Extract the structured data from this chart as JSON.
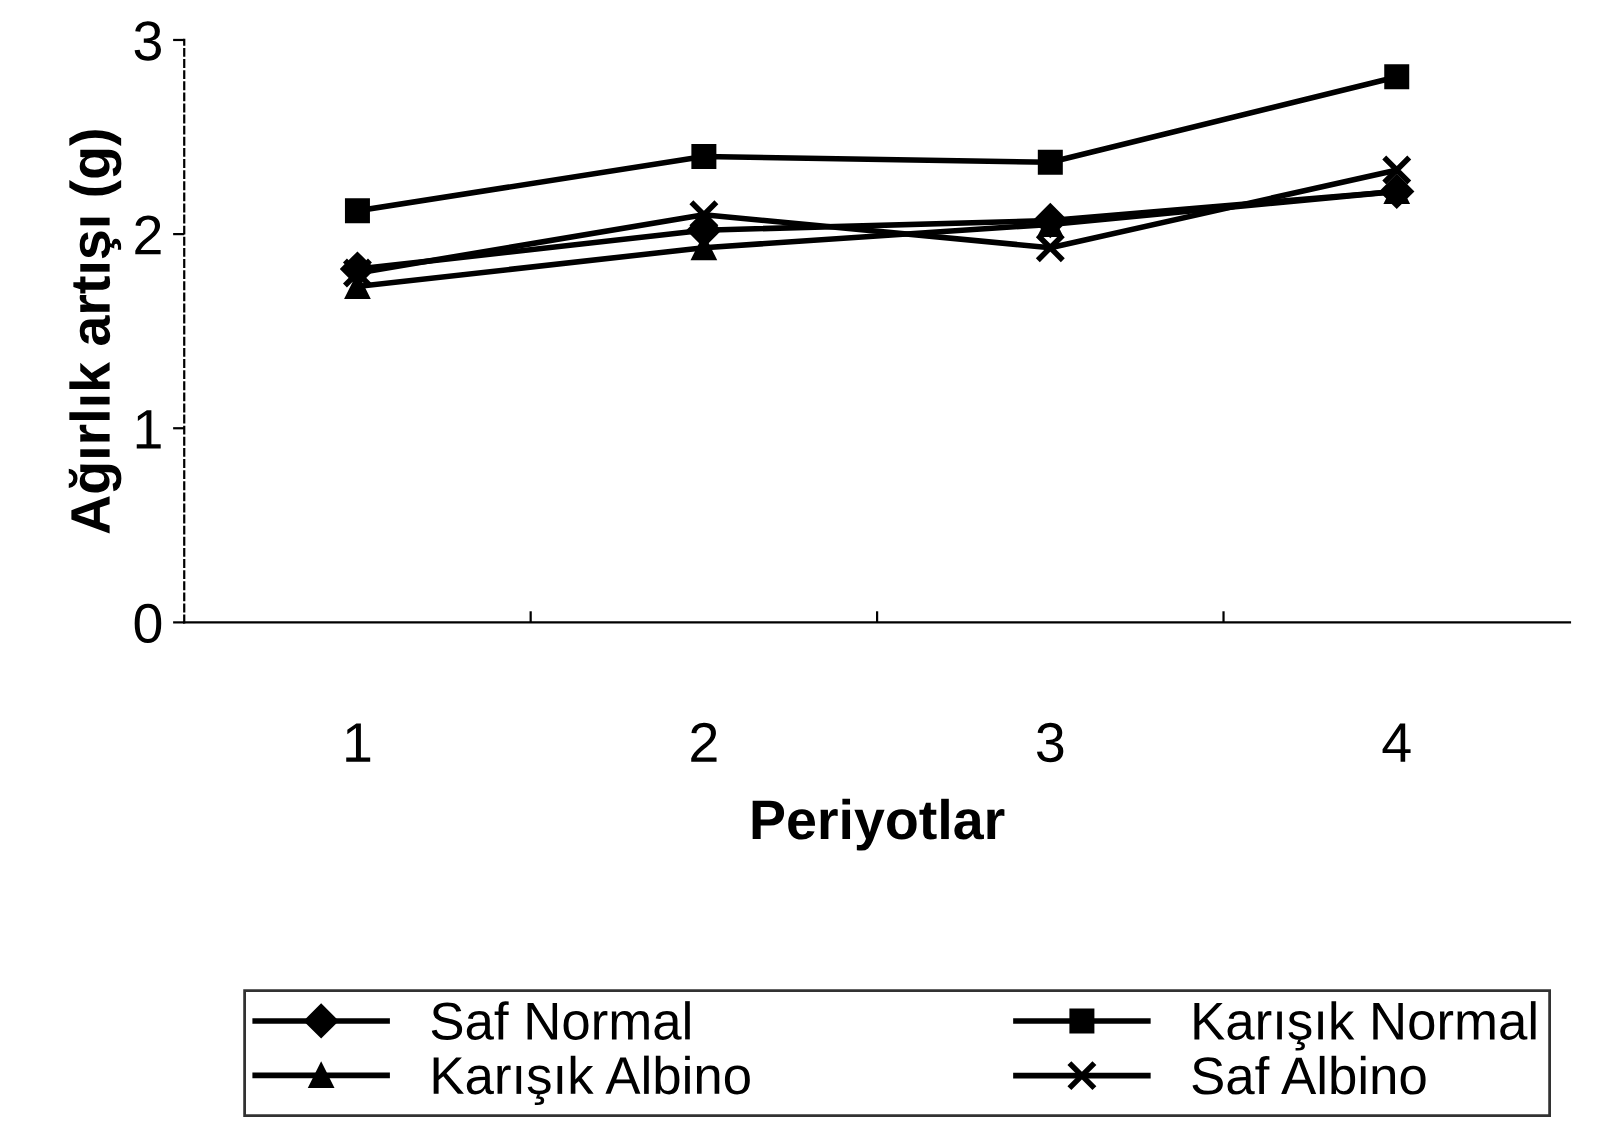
{
  "chart_data": {
    "type": "line",
    "xlabel": "Periyotlar",
    "ylabel": "Ağırlık artışı (g)",
    "categories": [
      "1",
      "2",
      "3",
      "4"
    ],
    "ylim": [
      0,
      3
    ],
    "yticks": [
      0,
      1,
      2,
      3
    ],
    "grid": false,
    "legend": "bottom",
    "line_style": "solid",
    "series": [
      {
        "name": "Saf Normal",
        "color": "#000000",
        "marker": "diamond",
        "values": [
          1.82,
          2.02,
          2.07,
          2.22
        ]
      },
      {
        "name": "Karışık Normal",
        "color": "#000000",
        "marker": "square",
        "values": [
          2.12,
          2.4,
          2.37,
          2.81
        ]
      },
      {
        "name": "Karışık Albino",
        "color": "#000000",
        "marker": "triangle",
        "values": [
          1.73,
          1.93,
          2.05,
          2.22
        ]
      },
      {
        "name": "Saf Albino",
        "color": "#000000",
        "marker": "cross",
        "values": [
          1.8,
          2.1,
          1.93,
          2.33
        ]
      }
    ]
  }
}
